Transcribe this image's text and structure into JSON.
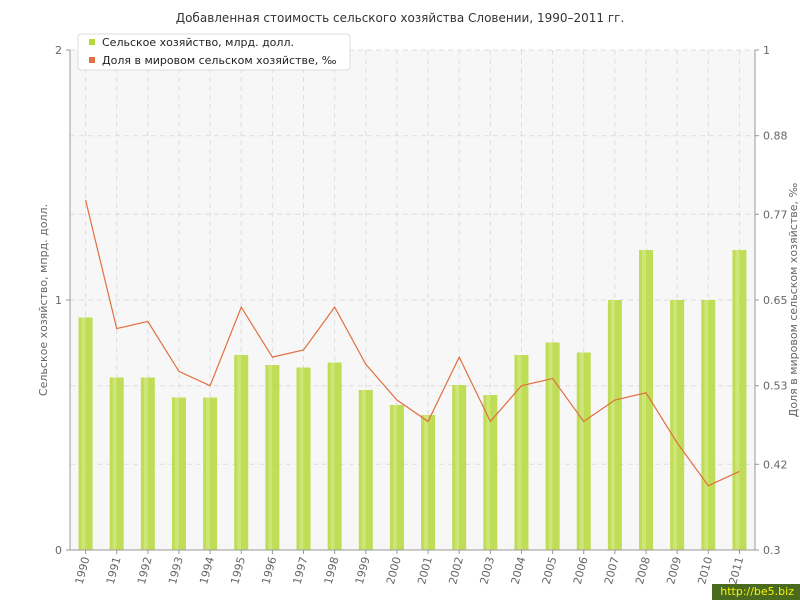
{
  "chart_data": {
    "type": "bar+line",
    "title": "Добавленная стоимость сельского хозяйства Словении, 1990–2011 гг.",
    "ylabel_left": "Сельское хозяйство, мпрд. долл.",
    "ylabel_right": "Доля в мировом сельском хозяйстве, ‰",
    "categories": [
      "1990",
      "1991",
      "1992",
      "1993",
      "1994",
      "1995",
      "1996",
      "1997",
      "1998",
      "1999",
      "2000",
      "2001",
      "2002",
      "2003",
      "2004",
      "2005",
      "2006",
      "2007",
      "2008",
      "2009",
      "2010",
      "2011"
    ],
    "left_axis": {
      "min": 0,
      "max": 2,
      "ticks": [
        "0",
        "1",
        "2"
      ]
    },
    "right_axis": {
      "min": 0.3,
      "max": 1.0,
      "ticks": [
        "0.3",
        "0.42",
        "0.53",
        "0.65",
        "0.77",
        "0.88",
        "1"
      ]
    },
    "series": [
      {
        "name": "Сельское хозяйство, млрд. долл.",
        "type": "bar",
        "axis": "left",
        "color": "#b5d83a",
        "values": [
          0.93,
          0.69,
          0.69,
          0.61,
          0.61,
          0.78,
          0.74,
          0.73,
          0.75,
          0.64,
          0.58,
          0.54,
          0.66,
          0.62,
          0.78,
          0.83,
          0.79,
          1.0,
          1.2,
          1.0,
          1.0,
          1.2
        ]
      },
      {
        "name": "Доля в мировом сельском хозяйстве, ‰",
        "type": "line",
        "axis": "right",
        "color": "#e07040",
        "values": [
          0.79,
          0.61,
          0.62,
          0.55,
          0.53,
          0.64,
          0.57,
          0.58,
          0.64,
          0.56,
          0.51,
          0.48,
          0.57,
          0.48,
          0.53,
          0.54,
          0.48,
          0.51,
          0.52,
          0.45,
          0.39,
          0.41
        ]
      }
    ],
    "legend_position": "top-left",
    "grid": true
  },
  "watermark": "http://be5.biz"
}
